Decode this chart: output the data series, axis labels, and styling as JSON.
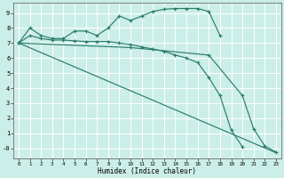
{
  "xlabel": "Humidex (Indice chaleur)",
  "background_color": "#cceee8",
  "grid_color": "#ffffff",
  "line_color": "#2a7d6a",
  "xlim": [
    -0.5,
    23.5
  ],
  "ylim": [
    -0.7,
    9.7
  ],
  "line1": {
    "x": [
      0,
      1,
      2,
      3,
      4,
      5,
      6,
      7,
      8,
      9,
      10,
      11,
      12,
      13,
      14,
      15,
      16,
      17,
      18
    ],
    "y": [
      7.0,
      8.0,
      7.5,
      7.3,
      7.3,
      7.8,
      7.8,
      7.5,
      8.0,
      8.8,
      8.5,
      8.8,
      9.1,
      9.25,
      9.3,
      9.3,
      9.3,
      9.1,
      7.5
    ],
    "marker": true
  },
  "line2": {
    "x": [
      0,
      1,
      2,
      3,
      4,
      5,
      6,
      7,
      8,
      9,
      10,
      11,
      12,
      13,
      14,
      15,
      16,
      17,
      18,
      19,
      20
    ],
    "y": [
      7.0,
      7.5,
      7.3,
      7.2,
      7.2,
      7.15,
      7.1,
      7.1,
      7.1,
      7.0,
      6.9,
      6.75,
      6.6,
      6.45,
      6.2,
      6.0,
      5.7,
      4.7,
      3.5,
      1.2,
      0.1
    ],
    "marker": true
  },
  "line3": {
    "x": [
      0,
      10,
      17,
      20,
      21,
      22,
      23
    ],
    "y": [
      7.0,
      6.7,
      6.2,
      3.5,
      1.3,
      0.15,
      -0.25
    ],
    "marker": true
  },
  "line4": {
    "x": [
      0,
      23
    ],
    "y": [
      7.0,
      -0.3
    ],
    "marker": false
  },
  "ytick_labels": [
    "-0",
    "1",
    "2",
    "3",
    "4",
    "5",
    "6",
    "7",
    "8",
    "9"
  ],
  "xtick_labels": [
    "0",
    "1",
    "2",
    "3",
    "4",
    "5",
    "6",
    "7",
    "8",
    "9",
    "10",
    "11",
    "12",
    "13",
    "14",
    "15",
    "16",
    "17",
    "18",
    "19",
    "20",
    "21",
    "22",
    "23"
  ]
}
